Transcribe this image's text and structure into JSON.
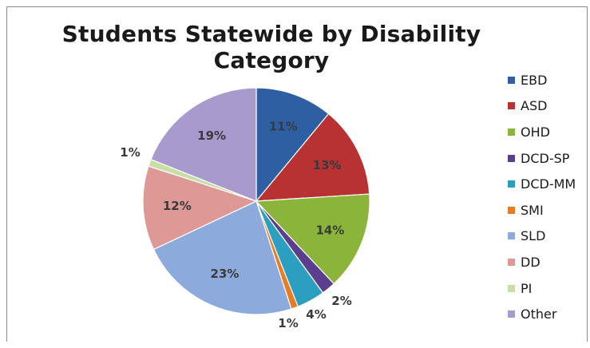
{
  "chart_data": {
    "type": "pie",
    "title": "Students Statewide by Disability Category",
    "legend_position": "right",
    "slices": [
      {
        "label": "EBD",
        "value": 11,
        "display": "11%",
        "color": "#2e5fa3"
      },
      {
        "label": "ASD",
        "value": 13,
        "display": "13%",
        "color": "#b83234"
      },
      {
        "label": "OHD",
        "value": 14,
        "display": "14%",
        "color": "#8ab53a"
      },
      {
        "label": "DCD-SP",
        "value": 2,
        "display": "2%",
        "color": "#5b3e8c"
      },
      {
        "label": "DCD-MM",
        "value": 4,
        "display": "4%",
        "color": "#2c9ec0"
      },
      {
        "label": "SMI",
        "value": 1,
        "display": "1%",
        "color": "#e87c25"
      },
      {
        "label": "SLD",
        "value": 23,
        "display": "23%",
        "color": "#8cabdc"
      },
      {
        "label": "DD",
        "value": 12,
        "display": "12%",
        "color": "#de9896"
      },
      {
        "label": "PI",
        "value": 1,
        "display": "1%",
        "color": "#c8dfa4"
      },
      {
        "label": "Other",
        "value": 19,
        "display": "19%",
        "color": "#a99acd"
      }
    ]
  }
}
